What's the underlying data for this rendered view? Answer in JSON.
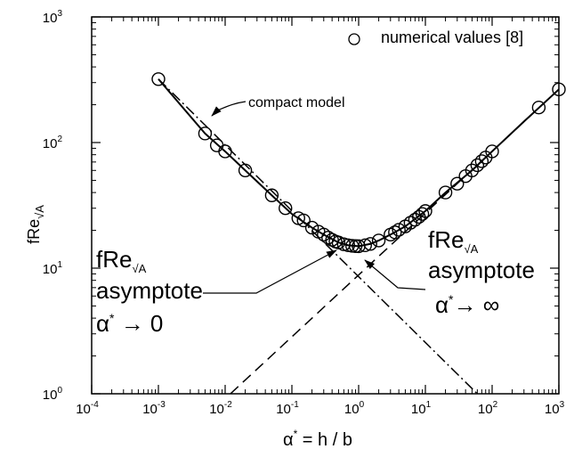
{
  "chart_data": {
    "type": "scatter",
    "xscale": "log",
    "yscale": "log",
    "xlim": [
      0.0001,
      1000
    ],
    "ylim": [
      1,
      1000
    ],
    "xticks": [
      {
        "base": "10",
        "exp": "-4"
      },
      {
        "base": "10",
        "exp": "-3"
      },
      {
        "base": "10",
        "exp": "-2"
      },
      {
        "base": "10",
        "exp": "-1"
      },
      {
        "base": "10",
        "exp": "0"
      },
      {
        "base": "10",
        "exp": "1"
      },
      {
        "base": "10",
        "exp": "2"
      },
      {
        "base": "10",
        "exp": "3"
      }
    ],
    "yticks": [
      {
        "base": "10",
        "exp": "0"
      },
      {
        "base": "10",
        "exp": "1"
      },
      {
        "base": "10",
        "exp": "2"
      },
      {
        "base": "10",
        "exp": "3"
      }
    ],
    "xlabel": {
      "main": "α",
      "sup": "*",
      "rest": " = h / b"
    },
    "ylabel": {
      "main": "fRe",
      "sub": "√A"
    },
    "legend": {
      "position": "top-right",
      "label": "numerical values [8]"
    },
    "series": [
      {
        "name": "numerical values [8]",
        "marker": "circle",
        "points": [
          [
            0.001,
            320
          ],
          [
            0.005,
            118
          ],
          [
            0.0075,
            95
          ],
          [
            0.01,
            85
          ],
          [
            0.02,
            60
          ],
          [
            0.05,
            38
          ],
          [
            0.08,
            30
          ],
          [
            0.125,
            25
          ],
          [
            0.15,
            24
          ],
          [
            0.2,
            21
          ],
          [
            0.25,
            19.5
          ],
          [
            0.3,
            18.5
          ],
          [
            0.35,
            17.5
          ],
          [
            0.4,
            16.8
          ],
          [
            0.45,
            16.3
          ],
          [
            0.5,
            16.0
          ],
          [
            0.6,
            15.5
          ],
          [
            0.7,
            15.2
          ],
          [
            0.8,
            15.05
          ],
          [
            0.9,
            14.98
          ],
          [
            1.0,
            14.95
          ],
          [
            1.25,
            15.2
          ],
          [
            1.5,
            15.6
          ],
          [
            2.0,
            16.6
          ],
          [
            3.0,
            18.5
          ],
          [
            3.5,
            19.3
          ],
          [
            4.0,
            20.2
          ],
          [
            5.0,
            21.5
          ],
          [
            6.0,
            23.0
          ],
          [
            7.0,
            24.3
          ],
          [
            8.0,
            25.6
          ],
          [
            9.0,
            27.0
          ],
          [
            10.0,
            28.5
          ],
          [
            20.0,
            40
          ],
          [
            30.0,
            47
          ],
          [
            40.0,
            54
          ],
          [
            50.0,
            60
          ],
          [
            60.0,
            66
          ],
          [
            70.0,
            71
          ],
          [
            80.0,
            76
          ],
          [
            100.0,
            85
          ],
          [
            500.0,
            190
          ],
          [
            1000.0,
            265
          ]
        ]
      },
      {
        "name": "compact model",
        "style": "solid",
        "points": [
          [
            0.001,
            320
          ],
          [
            0.005,
            118
          ],
          [
            0.01,
            85
          ],
          [
            0.02,
            60
          ],
          [
            0.05,
            38
          ],
          [
            0.1,
            27
          ],
          [
            0.2,
            21
          ],
          [
            0.3,
            18.5
          ],
          [
            0.5,
            16.0
          ],
          [
            0.7,
            15.2
          ],
          [
            1.0,
            14.95
          ],
          [
            1.5,
            15.6
          ],
          [
            2.0,
            16.6
          ],
          [
            3.0,
            18.5
          ],
          [
            5.0,
            21.5
          ],
          [
            10.0,
            28.5
          ],
          [
            20.0,
            40
          ],
          [
            50.0,
            60
          ],
          [
            100.0,
            85
          ],
          [
            300.0,
            147
          ],
          [
            1000.0,
            265
          ]
        ]
      },
      {
        "name": "asymptote-alpha-to-zero",
        "style": "dashdot",
        "points": [
          [
            0.001,
            320
          ],
          [
            60,
            1
          ]
        ]
      },
      {
        "name": "asymptote-alpha-to-infinity",
        "style": "dashed",
        "points": [
          [
            0.012,
            1
          ],
          [
            1000,
            265
          ]
        ]
      }
    ],
    "annotations": {
      "compact_model": "compact model",
      "asym_zero": {
        "l1_main": "fRe",
        "l1_sub": "√A",
        "l2": "asymptote",
        "l3_alpha": "α",
        "l3_sup": "*",
        "l3_rest": " → 0"
      },
      "asym_inf": {
        "l1_main": "fRe",
        "l1_sub": "√A",
        "l2": "asymptote",
        "l3_alpha": "α",
        "l3_sup": "*",
        "l3_rest": "→ ∞"
      }
    }
  }
}
